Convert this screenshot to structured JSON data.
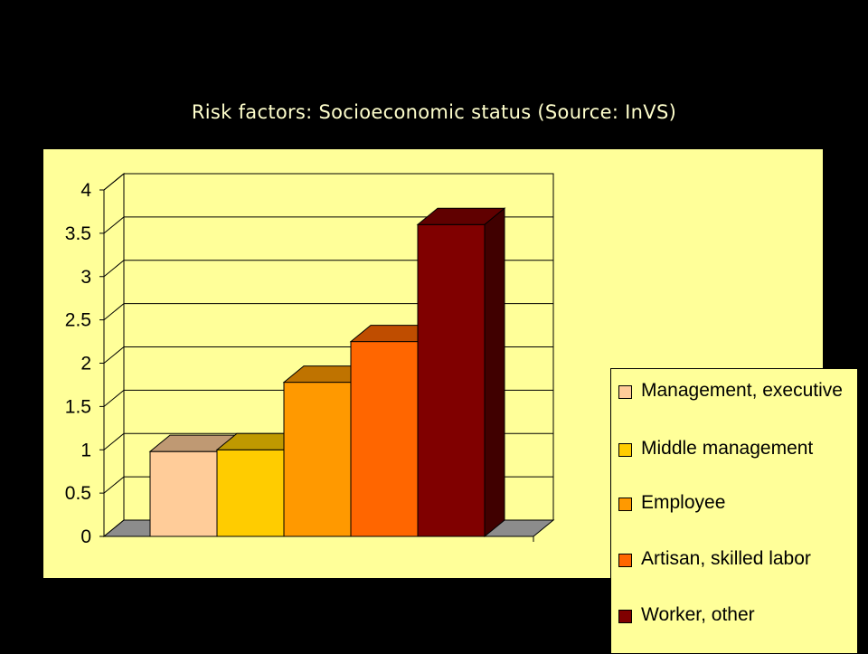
{
  "slide": {
    "title": "Risk factors: Socioeconomic status (Source: InVS)"
  },
  "colors": {
    "background": "#000000",
    "title_text": "#ffffcc",
    "panel": "#ffff99",
    "floor": "#8c8c8c"
  },
  "chart_data": {
    "type": "bar",
    "style": "3d",
    "categories": [
      "Management, executive",
      "Middle management",
      "Employee",
      "Artisan, skilled labor",
      "Worker, other"
    ],
    "series": [
      {
        "values": [
          0.98,
          1.0,
          1.78,
          2.25,
          3.6
        ]
      }
    ],
    "bar_colors": [
      "#ffcc99",
      "#ffcc00",
      "#ff9900",
      "#ff6600",
      "#800000"
    ],
    "ylim": [
      0,
      4
    ],
    "yticks": [
      "0",
      "0.5",
      "1",
      "1.5",
      "2",
      "2.5",
      "3",
      "3.5",
      "4"
    ],
    "grid": true,
    "legend_position": "right",
    "legend": [
      "Management, executive",
      "Middle management",
      "Employee",
      "Artisan, skilled labor",
      "Worker, other"
    ]
  }
}
